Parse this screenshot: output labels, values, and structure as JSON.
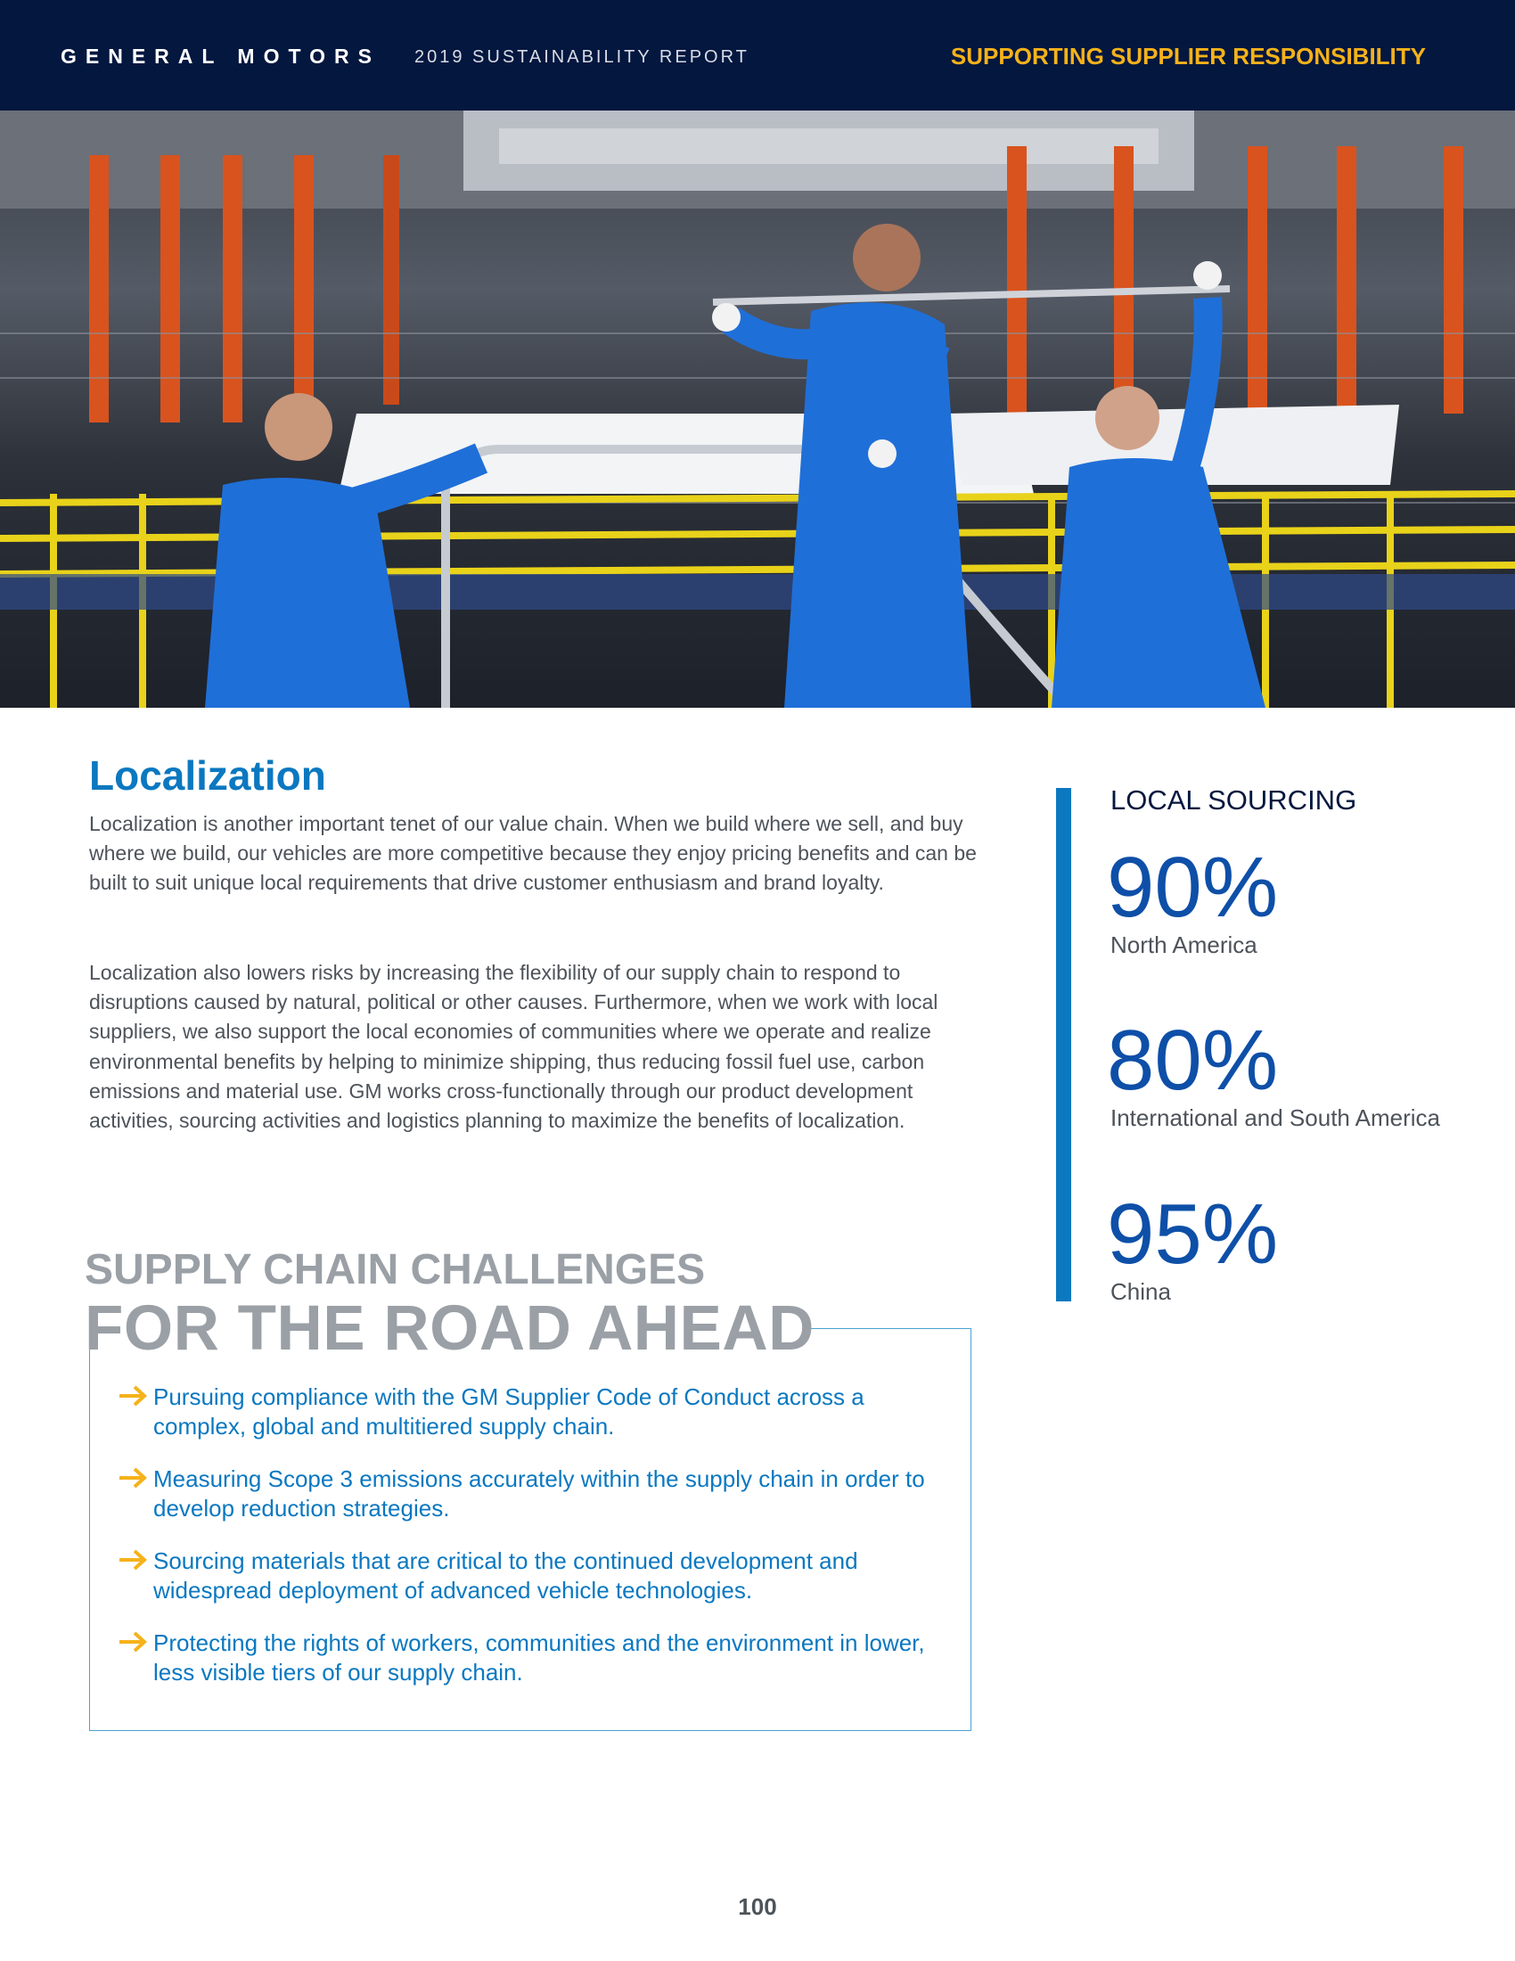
{
  "header": {
    "brand": "GENERAL MOTORS",
    "report": "2019 SUSTAINABILITY REPORT",
    "section": "SUPPORTING SUPPLIER RESPONSIBILITY"
  },
  "localization": {
    "heading": "Localization",
    "paragraphs": [
      "Localization is another important tenet of our value chain. When we build where we sell, and buy where we build, our vehicles are more competitive because they enjoy pricing benefits and can be built to suit unique local requirements that drive customer enthusiasm and brand loyalty.",
      "Localization also lowers risks by increasing the flexibility of our supply chain to respond to disruptions caused by natural, political or other causes. Furthermore, when we work with local suppliers, we also support the local economies of communities where we operate and realize environmental benefits by helping to minimize shipping, thus reducing fossil fuel use, carbon emissions and material use. GM works cross-functionally through our product development activities, sourcing activities and logistics planning to maximize the benefits of localization."
    ]
  },
  "local_sourcing": {
    "title": "LOCAL SOURCING",
    "stats": [
      {
        "value": "90%",
        "label": "North America"
      },
      {
        "value": "80%",
        "label": "International and South America"
      },
      {
        "value": "95%",
        "label": "China"
      }
    ]
  },
  "challenges": {
    "subtitle": "SUPPLY CHAIN CHALLENGES",
    "title": "FOR THE ROAD AHEAD",
    "items": [
      "Pursuing compliance with the GM Supplier Code of Conduct across a complex, global and multitiered supply chain.",
      "Measuring Scope 3 emissions accurately within the supply chain in order to develop reduction strategies.",
      "Sourcing materials that are critical to the continued development and widespread deployment of advanced vehicle technologies.",
      "Protecting the rights of workers, communities and the environment in lower, less visible tiers of our supply chain."
    ]
  },
  "page_number": "100",
  "colors": {
    "header_bg": "#04173f",
    "accent_yellow": "#f5b21a",
    "accent_blue": "#0b78c0",
    "stat_blue": "#0e4fa8",
    "heading_gray": "#9aa0a6"
  },
  "icons": {
    "bullet": "arrow-right-icon"
  }
}
